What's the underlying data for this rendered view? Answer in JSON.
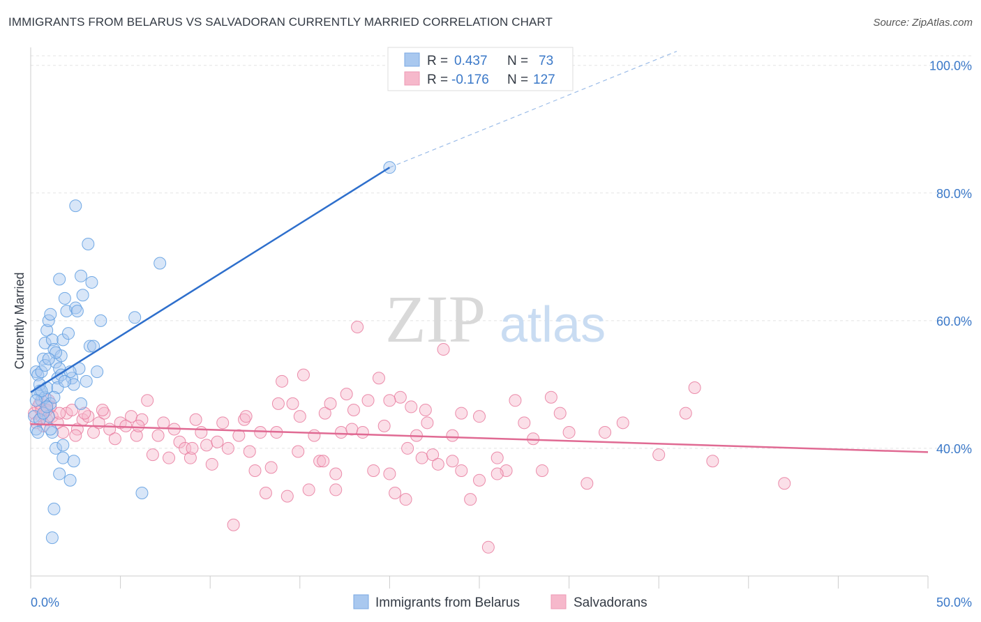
{
  "title": "IMMIGRANTS FROM BELARUS VS SALVADORAN CURRENTLY MARRIED CORRELATION CHART",
  "source": "Source: ZipAtlas.com",
  "watermark": {
    "zip": "ZIP",
    "atlas": "atlas"
  },
  "legend_top": {
    "rows": [
      {
        "r_label": "R =",
        "r_value": "0.437",
        "n_label": "N =",
        "n_value": "73",
        "color": "#a9c8ef"
      },
      {
        "r_label": "R =",
        "r_value": "-0.176",
        "n_label": "N =",
        "n_value": "127",
        "color": "#f6b8cb"
      }
    ]
  },
  "legend_bottom": [
    {
      "label": "Immigrants from Belarus",
      "color": "#a9c8ef"
    },
    {
      "label": "Salvadorans",
      "color": "#f6b8cb"
    }
  ],
  "chart_data": {
    "type": "scatter",
    "title": "IMMIGRANTS FROM BELARUS VS SALVADORAN CURRENTLY MARRIED CORRELATION CHART",
    "xlabel": "",
    "ylabel": "Currently Married",
    "xlim": [
      0,
      50
    ],
    "ylim": [
      20,
      101.5
    ],
    "x_tick_labels": [
      "0.0%",
      "50.0%"
    ],
    "y_ticks": [
      40,
      60,
      80,
      100
    ],
    "y_tick_labels": [
      "40.0%",
      "60.0%",
      "80.0%",
      "100.0%"
    ],
    "grid": true,
    "legend_position": "top-center",
    "series": [
      {
        "name": "Immigrants from Belarus",
        "color": "#5b9be0",
        "fill": "#a9c8ef",
        "R": 0.437,
        "N": 73,
        "trend": {
          "x0": 0.0,
          "y0": 48.8,
          "x1": 20.0,
          "y1": 84.0,
          "dash_to": {
            "x": 36.0,
            "y": 102.2
          }
        },
        "points": [
          [
            0.3,
            52.0
          ],
          [
            0.4,
            51.5
          ],
          [
            0.5,
            49.0
          ],
          [
            0.6,
            47.5
          ],
          [
            0.2,
            45.0
          ],
          [
            0.3,
            43.0
          ],
          [
            0.4,
            48.5
          ],
          [
            0.5,
            50.0
          ],
          [
            0.7,
            54.0
          ],
          [
            0.8,
            56.5
          ],
          [
            0.9,
            58.5
          ],
          [
            1.0,
            60.0
          ],
          [
            1.1,
            61.0
          ],
          [
            1.2,
            57.0
          ],
          [
            1.3,
            55.5
          ],
          [
            1.4,
            53.5
          ],
          [
            1.5,
            51.0
          ],
          [
            1.6,
            52.5
          ],
          [
            1.7,
            54.5
          ],
          [
            1.8,
            57.0
          ],
          [
            1.9,
            63.5
          ],
          [
            2.0,
            61.5
          ],
          [
            2.1,
            58.0
          ],
          [
            2.3,
            51.0
          ],
          [
            2.5,
            62.0
          ],
          [
            0.6,
            52.0
          ],
          [
            0.8,
            48.0
          ],
          [
            1.0,
            45.0
          ],
          [
            1.2,
            42.5
          ],
          [
            1.4,
            40.0
          ],
          [
            1.6,
            36.0
          ],
          [
            1.8,
            38.5
          ],
          [
            2.2,
            35.0
          ],
          [
            1.3,
            30.5
          ],
          [
            1.2,
            26.0
          ],
          [
            0.9,
            49.5
          ],
          [
            1.1,
            47.0
          ],
          [
            1.5,
            49.5
          ],
          [
            1.7,
            51.5
          ],
          [
            2.4,
            50.0
          ],
          [
            2.7,
            52.5
          ],
          [
            2.8,
            47.0
          ],
          [
            3.1,
            50.5
          ],
          [
            3.3,
            56.0
          ],
          [
            3.5,
            56.0
          ],
          [
            3.7,
            52.0
          ],
          [
            3.9,
            60.0
          ],
          [
            2.6,
            61.5
          ],
          [
            2.9,
            64.0
          ],
          [
            2.2,
            52.0
          ],
          [
            2.8,
            67.0
          ],
          [
            3.2,
            72.0
          ],
          [
            1.6,
            66.5
          ],
          [
            2.5,
            78.0
          ],
          [
            7.2,
            69.0
          ],
          [
            5.8,
            60.5
          ],
          [
            3.4,
            66.0
          ],
          [
            6.2,
            33.0
          ],
          [
            20.0,
            84.0
          ],
          [
            0.4,
            42.5
          ],
          [
            0.5,
            44.5
          ],
          [
            0.7,
            45.5
          ],
          [
            0.9,
            46.5
          ],
          [
            1.3,
            48.0
          ],
          [
            1.9,
            50.5
          ],
          [
            2.4,
            38.0
          ],
          [
            1.1,
            43.0
          ],
          [
            1.8,
            40.5
          ],
          [
            0.6,
            49.0
          ],
          [
            0.8,
            53.0
          ],
          [
            1.4,
            55.0
          ],
          [
            1.0,
            54.0
          ],
          [
            0.3,
            47.5
          ]
        ]
      },
      {
        "name": "Salvadorans",
        "color": "#e8799c",
        "fill": "#f6b8cb",
        "R": -0.176,
        "N": 127,
        "trend": {
          "x0": 0.0,
          "y0": 43.8,
          "x1": 50.0,
          "y1": 39.4
        },
        "points": [
          [
            0.2,
            45.5
          ],
          [
            0.3,
            44.0
          ],
          [
            0.4,
            46.5
          ],
          [
            0.5,
            47.0
          ],
          [
            0.6,
            45.0
          ],
          [
            0.7,
            43.5
          ],
          [
            0.8,
            46.0
          ],
          [
            0.9,
            44.5
          ],
          [
            1.0,
            47.5
          ],
          [
            1.2,
            45.0
          ],
          [
            1.5,
            44.0
          ],
          [
            1.8,
            42.5
          ],
          [
            2.0,
            45.5
          ],
          [
            2.3,
            46.0
          ],
          [
            2.6,
            43.0
          ],
          [
            2.9,
            44.5
          ],
          [
            3.2,
            45.0
          ],
          [
            3.5,
            42.5
          ],
          [
            3.8,
            44.0
          ],
          [
            4.1,
            45.5
          ],
          [
            4.4,
            43.0
          ],
          [
            4.7,
            41.5
          ],
          [
            5.0,
            44.0
          ],
          [
            5.3,
            43.5
          ],
          [
            5.6,
            45.0
          ],
          [
            5.9,
            42.0
          ],
          [
            6.2,
            44.5
          ],
          [
            6.5,
            47.5
          ],
          [
            6.8,
            39.0
          ],
          [
            7.1,
            42.0
          ],
          [
            7.4,
            44.0
          ],
          [
            7.7,
            38.5
          ],
          [
            8.0,
            43.0
          ],
          [
            8.3,
            41.0
          ],
          [
            8.6,
            40.0
          ],
          [
            8.9,
            38.5
          ],
          [
            9.2,
            44.5
          ],
          [
            9.5,
            42.5
          ],
          [
            9.8,
            40.5
          ],
          [
            10.1,
            37.5
          ],
          [
            10.4,
            41.0
          ],
          [
            10.7,
            44.0
          ],
          [
            11.0,
            40.0
          ],
          [
            11.3,
            28.0
          ],
          [
            11.6,
            42.0
          ],
          [
            11.9,
            44.5
          ],
          [
            12.2,
            39.5
          ],
          [
            12.5,
            36.5
          ],
          [
            12.8,
            42.5
          ],
          [
            13.1,
            33.0
          ],
          [
            13.4,
            37.0
          ],
          [
            13.7,
            42.5
          ],
          [
            14.0,
            50.5
          ],
          [
            14.3,
            32.5
          ],
          [
            14.6,
            47.0
          ],
          [
            14.9,
            39.5
          ],
          [
            15.2,
            51.5
          ],
          [
            15.5,
            33.5
          ],
          [
            15.8,
            42.0
          ],
          [
            16.1,
            38.0
          ],
          [
            16.4,
            45.5
          ],
          [
            16.7,
            47.0
          ],
          [
            17.0,
            36.0
          ],
          [
            17.3,
            42.5
          ],
          [
            17.6,
            48.5
          ],
          [
            17.9,
            43.0
          ],
          [
            18.2,
            59.0
          ],
          [
            18.5,
            42.5
          ],
          [
            18.8,
            47.5
          ],
          [
            19.1,
            36.5
          ],
          [
            19.4,
            51.0
          ],
          [
            19.7,
            43.5
          ],
          [
            20.0,
            36.0
          ],
          [
            20.3,
            33.0
          ],
          [
            20.6,
            48.0
          ],
          [
            20.9,
            32.0
          ],
          [
            21.2,
            46.5
          ],
          [
            21.5,
            42.0
          ],
          [
            21.8,
            38.5
          ],
          [
            22.1,
            44.0
          ],
          [
            22.4,
            39.0
          ],
          [
            22.7,
            37.5
          ],
          [
            23.0,
            55.5
          ],
          [
            23.5,
            42.0
          ],
          [
            24.0,
            36.5
          ],
          [
            24.5,
            32.0
          ],
          [
            25.0,
            35.0
          ],
          [
            25.5,
            24.5
          ],
          [
            26.0,
            38.5
          ],
          [
            26.5,
            36.5
          ],
          [
            27.0,
            47.5
          ],
          [
            27.5,
            44.0
          ],
          [
            28.0,
            41.5
          ],
          [
            29.0,
            48.0
          ],
          [
            29.5,
            45.5
          ],
          [
            31.0,
            34.5
          ],
          [
            32.0,
            42.5
          ],
          [
            33.0,
            44.0
          ],
          [
            35.0,
            39.0
          ],
          [
            36.5,
            45.5
          ],
          [
            37.0,
            49.5
          ],
          [
            38.0,
            38.0
          ],
          [
            42.0,
            34.5
          ],
          [
            13.8,
            47.0
          ],
          [
            9.0,
            40.0
          ],
          [
            12.0,
            45.0
          ],
          [
            6.0,
            43.5
          ],
          [
            4.0,
            46.0
          ],
          [
            3.0,
            45.5
          ],
          [
            2.5,
            42.0
          ],
          [
            1.6,
            45.5
          ],
          [
            1.1,
            46.5
          ],
          [
            0.9,
            46.0
          ],
          [
            0.6,
            46.0
          ],
          [
            17.0,
            33.5
          ],
          [
            16.3,
            38.0
          ],
          [
            15.0,
            45.0
          ],
          [
            18.0,
            46.0
          ],
          [
            21.0,
            40.0
          ],
          [
            24.0,
            45.5
          ],
          [
            25.0,
            45.0
          ],
          [
            26.0,
            36.0
          ],
          [
            28.5,
            36.5
          ],
          [
            30.0,
            42.5
          ],
          [
            20.0,
            47.5
          ],
          [
            22.0,
            46.0
          ],
          [
            23.5,
            38.0
          ]
        ]
      }
    ]
  }
}
